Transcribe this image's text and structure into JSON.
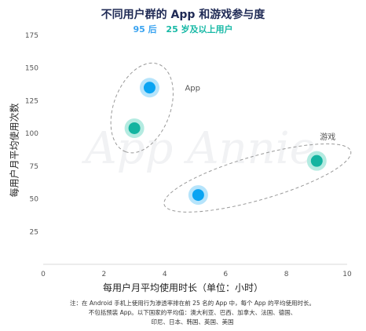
{
  "chart_data": {
    "type": "scatter",
    "title": "不同用户群的 App 和游戏参与度",
    "subtitle": [
      "95 后",
      "25 岁及以上用户"
    ],
    "subtitle_colors": [
      "#3aa3f0",
      "#18b9a6"
    ],
    "xlabel": "每用户月平均使用时长（单位：小时）",
    "ylabel": "每用户月平均使用次数",
    "xlim": [
      0,
      10
    ],
    "ylim": [
      0,
      175
    ],
    "xticks": [
      0,
      2,
      4,
      6,
      8,
      10
    ],
    "yticks": [
      25,
      50,
      75,
      100,
      125,
      150,
      175
    ],
    "series": [
      {
        "name": "95 后",
        "color": "#0aa4f2",
        "halo": "#b6e4fb",
        "points": [
          {
            "x": 3.5,
            "y": 135
          },
          {
            "x": 5.1,
            "y": 53
          }
        ]
      },
      {
        "name": "25 岁及以上用户",
        "color": "#13b4a0",
        "halo": "#b4ebe1",
        "points": [
          {
            "x": 3.0,
            "y": 104
          },
          {
            "x": 9.0,
            "y": 79
          }
        ]
      }
    ],
    "groups": [
      {
        "label": "App"
      },
      {
        "label": "游戏"
      }
    ],
    "watermark": "App Annie",
    "grid": false
  },
  "note": {
    "lines": [
      "注：在 Android 手机上使用行为渗透率排在前 25 名的 App 中，每个 App 的平均使用时长。",
      "不包括预装 App。以下国家的平均值：澳大利亚、巴西、加拿大、法国、德国、",
      "印尼、日本、韩国、英国、美国"
    ]
  }
}
